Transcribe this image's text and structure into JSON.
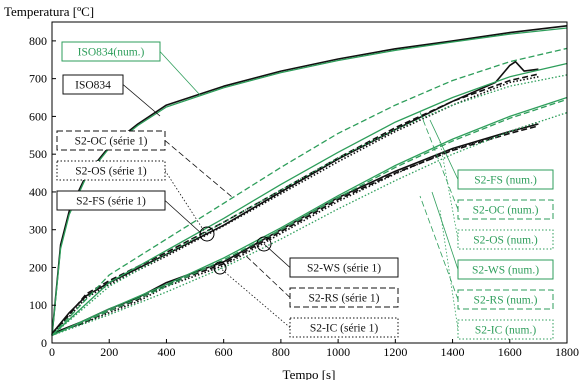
{
  "chart_data": {
    "type": "line",
    "ylabel": "Temperatura [ºC]",
    "xlabel": "Tempo [s]",
    "xlim": [
      0,
      1800
    ],
    "ylim": [
      0,
      850
    ],
    "xticks": [
      0,
      200,
      400,
      600,
      800,
      1000,
      1200,
      1400,
      1600,
      1800
    ],
    "yticks": [
      0,
      100,
      200,
      300,
      400,
      500,
      600,
      700,
      800
    ],
    "grid": false,
    "colors": {
      "experimental": "#111111",
      "numerical": "#2e9e5b"
    },
    "series": [
      {
        "name": "ISO834",
        "group": "experimental",
        "style": "solid",
        "x": [
          0,
          30,
          60,
          120,
          200,
          300,
          400,
          600,
          800,
          1000,
          1200,
          1400,
          1600,
          1800
        ],
        "y": [
          20,
          260,
          349,
          445,
          520,
          580,
          630,
          680,
          720,
          752,
          779,
          800,
          822,
          840
        ]
      },
      {
        "name": "ISO834(num.)",
        "group": "numerical",
        "style": "solid",
        "x": [
          0,
          30,
          60,
          120,
          200,
          300,
          400,
          600,
          800,
          1000,
          1200,
          1400,
          1600,
          1800
        ],
        "y": [
          20,
          250,
          340,
          440,
          516,
          576,
          625,
          676,
          716,
          748,
          775,
          797,
          818,
          834
        ]
      },
      {
        "name": "S2-OC (série 1)",
        "group": "experimental",
        "style": "dashed",
        "x": [
          0,
          60,
          120,
          200,
          400,
          600,
          800,
          1000,
          1200,
          1400,
          1600,
          1700
        ],
        "y": [
          25,
          75,
          130,
          165,
          240,
          320,
          405,
          490,
          570,
          640,
          695,
          712
        ]
      },
      {
        "name": "S2-OS (série 1)",
        "group": "experimental",
        "style": "dotted",
        "x": [
          0,
          60,
          120,
          200,
          400,
          600,
          800,
          1000,
          1200,
          1400,
          1600,
          1700
        ],
        "y": [
          25,
          70,
          120,
          155,
          230,
          310,
          395,
          480,
          560,
          630,
          690,
          705
        ]
      },
      {
        "name": "S2-FS (série 1)",
        "group": "experimental",
        "style": "solid",
        "x": [
          0,
          60,
          120,
          200,
          400,
          600,
          800,
          1000,
          1200,
          1400,
          1550,
          1600,
          1620,
          1650,
          1700
        ],
        "y": [
          25,
          80,
          125,
          160,
          235,
          312,
          400,
          487,
          565,
          640,
          690,
          735,
          745,
          720,
          725
        ]
      },
      {
        "name": "S2-WS (série 1)",
        "group": "experimental",
        "style": "solid",
        "x": [
          0,
          100,
          200,
          300,
          400,
          600,
          800,
          1000,
          1200,
          1400,
          1600,
          1700
        ],
        "y": [
          25,
          55,
          90,
          120,
          160,
          215,
          300,
          385,
          455,
          515,
          560,
          580
        ]
      },
      {
        "name": "S2-RS (série 1)",
        "group": "experimental",
        "style": "dashed",
        "x": [
          0,
          100,
          200,
          300,
          400,
          600,
          800,
          1000,
          1200,
          1400,
          1600,
          1700
        ],
        "y": [
          25,
          50,
          85,
          115,
          155,
          210,
          295,
          380,
          450,
          510,
          555,
          575
        ]
      },
      {
        "name": "S2-IC (série 1)",
        "group": "experimental",
        "style": "dotted",
        "x": [
          0,
          100,
          200,
          300,
          400,
          600,
          800,
          1000,
          1200,
          1400,
          1600,
          1700
        ],
        "y": [
          25,
          50,
          80,
          110,
          150,
          205,
          290,
          375,
          448,
          512,
          560,
          585
        ]
      },
      {
        "name": "S2-FS (num.)",
        "group": "numerical",
        "style": "solid",
        "x": [
          0,
          200,
          400,
          600,
          800,
          1000,
          1200,
          1400,
          1600,
          1800
        ],
        "y": [
          20,
          160,
          245,
          330,
          420,
          505,
          585,
          650,
          705,
          740
        ]
      },
      {
        "name": "S2-OC (num.)",
        "group": "numerical",
        "style": "dashed",
        "x": [
          0,
          200,
          400,
          600,
          800,
          1000,
          1200,
          1400,
          1600,
          1800
        ],
        "y": [
          20,
          180,
          275,
          370,
          465,
          555,
          630,
          695,
          745,
          780
        ]
      },
      {
        "name": "S2-OS (num.)",
        "group": "numerical",
        "style": "dotted",
        "x": [
          0,
          200,
          400,
          600,
          800,
          1000,
          1200,
          1400,
          1600,
          1800
        ],
        "y": [
          20,
          150,
          235,
          320,
          405,
          490,
          565,
          630,
          680,
          710
        ]
      },
      {
        "name": "S2-WS (num.)",
        "group": "numerical",
        "style": "solid",
        "x": [
          0,
          200,
          400,
          600,
          800,
          1000,
          1200,
          1400,
          1600,
          1800
        ],
        "y": [
          20,
          90,
          155,
          225,
          305,
          390,
          470,
          540,
          600,
          650
        ]
      },
      {
        "name": "S2-RS (num.)",
        "group": "numerical",
        "style": "dashed",
        "x": [
          0,
          200,
          400,
          600,
          800,
          1000,
          1200,
          1400,
          1600,
          1800
        ],
        "y": [
          20,
          85,
          150,
          220,
          300,
          385,
          465,
          535,
          595,
          645
        ]
      },
      {
        "name": "S2-IC (num.)",
        "group": "numerical",
        "style": "dotted",
        "x": [
          0,
          200,
          400,
          600,
          800,
          1000,
          1200,
          1400,
          1600,
          1800
        ],
        "y": [
          20,
          75,
          135,
          200,
          275,
          355,
          430,
          500,
          560,
          610
        ]
      }
    ]
  }
}
